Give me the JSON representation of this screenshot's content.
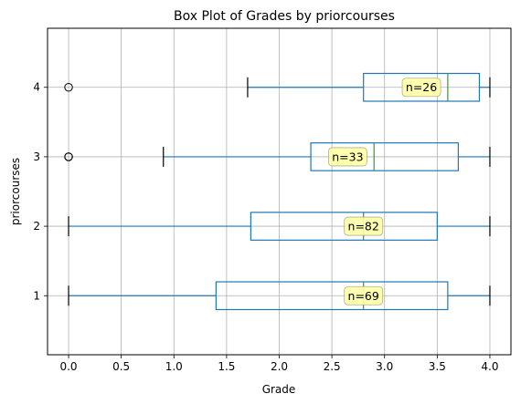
{
  "chart_data": {
    "type": "boxplot",
    "title": "Box Plot of Grades by priorcourses",
    "xlabel": "Grade",
    "ylabel": "priorcourses",
    "xlim": [
      -0.2,
      4.2
    ],
    "xticks": [
      0.0,
      0.5,
      1.0,
      1.5,
      2.0,
      2.5,
      3.0,
      3.5,
      4.0
    ],
    "xtick_labels": [
      "0.0",
      "0.5",
      "1.0",
      "1.5",
      "2.0",
      "2.5",
      "3.0",
      "3.5",
      "4.0"
    ],
    "grid": true,
    "orientation": "horizontal",
    "colors": {
      "box": "#1f77b4",
      "median": "#2ca02c",
      "whisker": "#1f77b4",
      "cap": "#000000",
      "annotation_bg": "#ffffa8"
    },
    "groups": [
      {
        "category": "1",
        "whisker_low": 0.0,
        "q1": 1.4,
        "median": 2.8,
        "q3": 3.6,
        "whisker_high": 4.0,
        "outliers": [],
        "count_label": "n=69",
        "label_x": 2.8
      },
      {
        "category": "2",
        "whisker_low": 0.0,
        "q1": 1.73,
        "median": 2.8,
        "q3": 3.5,
        "whisker_high": 4.0,
        "outliers": [],
        "count_label": "n=82",
        "label_x": 2.8
      },
      {
        "category": "3",
        "whisker_low": 0.9,
        "q1": 2.3,
        "median": 2.9,
        "q3": 3.7,
        "whisker_high": 4.0,
        "outliers": [
          0.0,
          0.0,
          0.0
        ],
        "count_label": "n=33",
        "label_x": 2.65
      },
      {
        "category": "4",
        "whisker_low": 1.7,
        "q1": 2.8,
        "median": 3.6,
        "q3": 3.9,
        "whisker_high": 4.0,
        "outliers": [
          0.0
        ],
        "count_label": "n=26",
        "label_x": 3.35
      }
    ]
  }
}
